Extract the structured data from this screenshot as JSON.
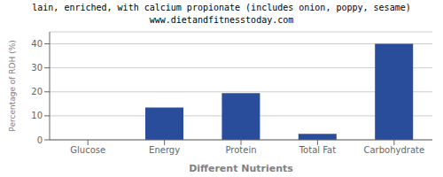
{
  "chart_data": {
    "type": "bar",
    "title": "lain, enriched, with calcium propionate (includes onion, poppy, sesame)",
    "subtitle": "www.dietandfitnesstoday.com",
    "categories": [
      "Glucose",
      "Energy",
      "Protein",
      "Total Fat",
      "Carbohydrate"
    ],
    "values": [
      0,
      13.5,
      19.5,
      2.5,
      40
    ],
    "color": "#2a4d9b",
    "xlabel": "Different Nutrients",
    "ylabel": "Percentage of RDH (%)",
    "ylim": [
      0,
      45
    ],
    "yticks": [
      0,
      10,
      20,
      30,
      40
    ],
    "grid": true
  }
}
